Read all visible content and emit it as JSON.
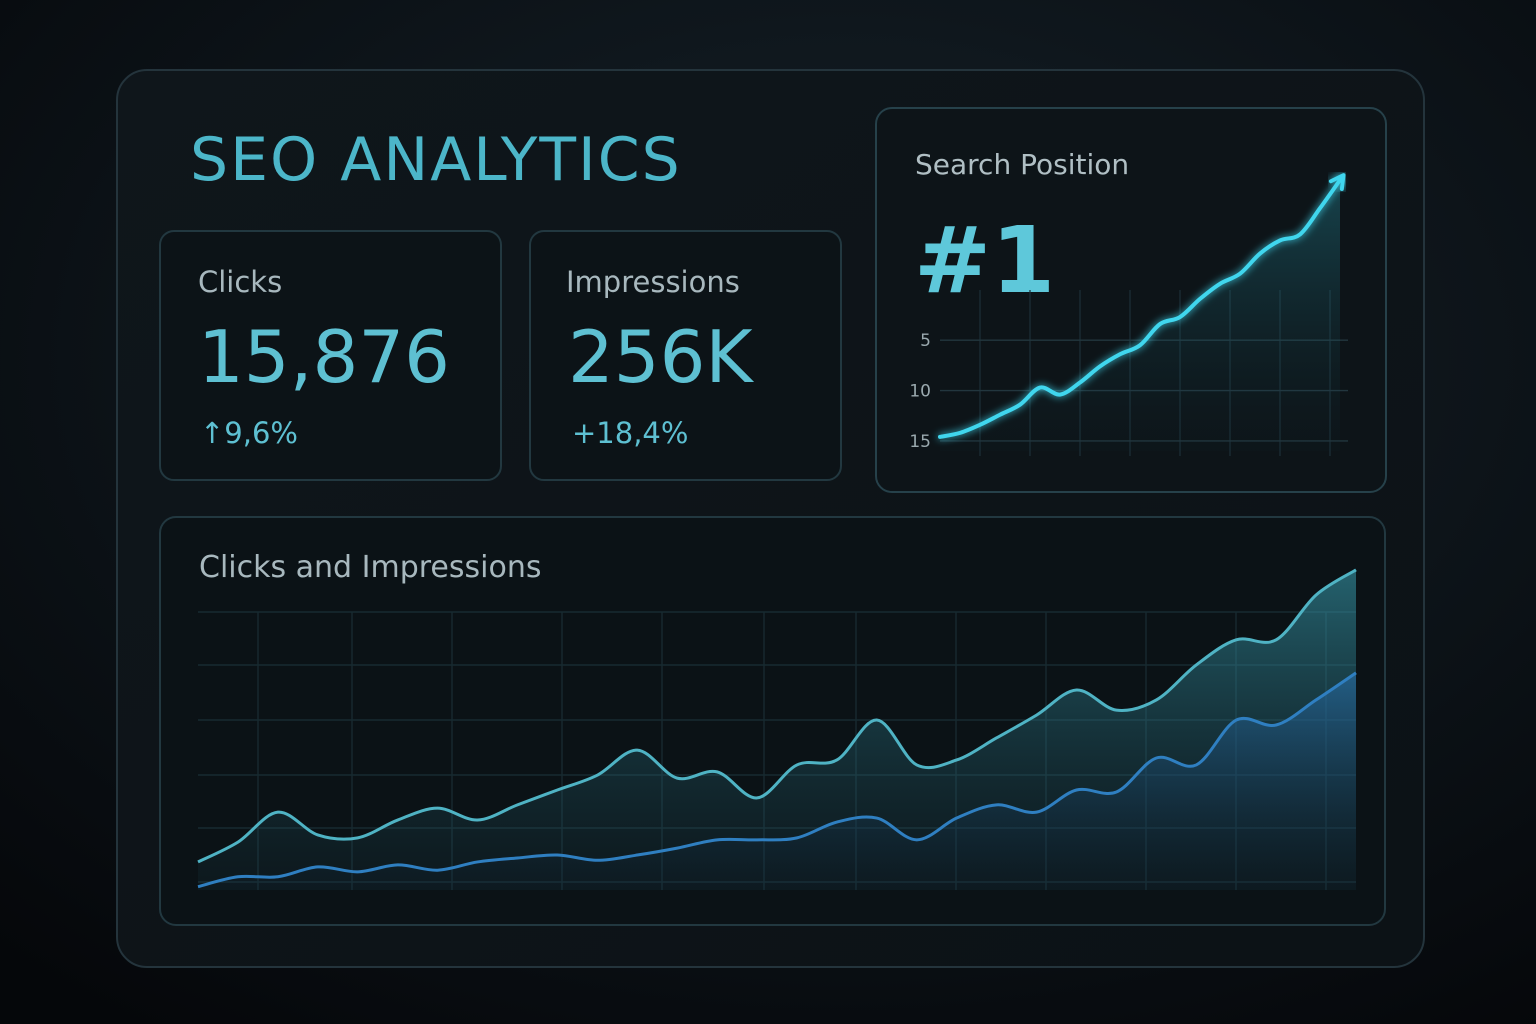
{
  "title": "SEO ANALYTICS",
  "cards": [
    {
      "label": "Clicks",
      "value": "15,876",
      "change": "↑9,6%"
    },
    {
      "label": "Impressions",
      "value": "256K",
      "change": "+18,4%"
    }
  ],
  "chart_data": [
    {
      "type": "line",
      "title": "Search Position",
      "annotation": "#1",
      "categories": [
        null,
        null,
        null,
        null,
        null,
        null,
        null,
        null,
        null,
        null,
        null,
        null,
        null,
        null,
        null,
        null,
        null,
        null,
        null,
        null,
        null
      ],
      "values": [
        14.6,
        14.2,
        13.4,
        12.4,
        11.4,
        9.7,
        10.4,
        9.2,
        7.6,
        6.4,
        5.5,
        3.4,
        2.7,
        0.9,
        -0.6,
        -1.6,
        -3.6,
        -4.9,
        -5.5,
        -8.1,
        -10.9
      ],
      "color": "#3fd6ee",
      "ylim": [
        16,
        -11
      ],
      "yticks": [
        5,
        10,
        15
      ],
      "grid": true
    },
    {
      "type": "area",
      "title": "Clicks and Impressions",
      "categories": [
        null,
        null,
        null,
        null,
        null,
        null,
        null,
        null,
        null,
        null,
        null,
        null,
        null,
        null,
        null,
        null,
        null,
        null,
        null,
        null,
        null,
        null,
        null,
        null,
        null,
        null,
        null,
        null,
        null,
        null
      ],
      "series": [
        {
          "color": "#4fb3c4",
          "values": [
            8.5,
            14.5,
            23.6,
            16.7,
            15.8,
            21.2,
            24.8,
            21.2,
            25.8,
            30.3,
            34.8,
            42.4,
            33.9,
            35.8,
            27.9,
            37.9,
            39.4,
            51.5,
            37.9,
            39.4,
            46.1,
            53,
            60.6,
            54.5,
            57.6,
            68.2,
            75.8,
            75.8,
            89.4,
            97
          ]
        },
        {
          "color": "#2f7fc1",
          "values": [
            1,
            4,
            4,
            7,
            5.5,
            7.6,
            6,
            8.5,
            9.7,
            10.6,
            9,
            10.6,
            12.7,
            15.2,
            15.2,
            15.8,
            20.6,
            21.8,
            15.2,
            21.8,
            25.8,
            23.6,
            30.3,
            29.7,
            40,
            37.9,
            51.5,
            50,
            57.6,
            65.8
          ]
        }
      ],
      "ylim": [
        0,
        100
      ],
      "grid": true
    }
  ]
}
